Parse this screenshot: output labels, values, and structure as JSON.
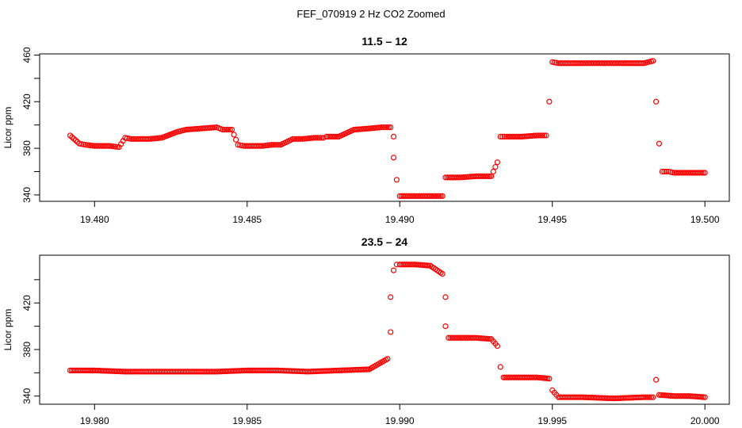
{
  "figure": {
    "title": "FEF_070919  2 Hz CO2 Zoomed"
  },
  "colors": {
    "points": "#ff0000",
    "axes": "#000000",
    "background": "#ffffff"
  },
  "chart_data": [
    {
      "type": "scatter",
      "title": "11.5 – 12",
      "xlabel": "",
      "ylabel": "Licor ppm",
      "xlim": [
        19.4782,
        19.5008
      ],
      "ylim": [
        334.5,
        461.0
      ],
      "x_ticks": [
        19.48,
        19.485,
        19.49,
        19.495,
        19.5
      ],
      "x_tick_labels": [
        "19.480",
        "19.485",
        "19.490",
        "19.495",
        "19.500"
      ],
      "y_ticks": [
        340,
        380,
        420,
        460
      ],
      "y_tick_labels": [
        "340",
        "380",
        "420",
        "460"
      ],
      "y_minor_ticks": [
        360,
        400,
        440
      ],
      "marker": "open-circle",
      "grid": false,
      "series": [
        {
          "x": [
            19.4792,
            19.4795,
            19.4797,
            19.48,
            19.4805,
            19.4808,
            19.481,
            19.4812,
            19.4818,
            19.4822,
            19.4827,
            19.483,
            19.4835,
            19.484,
            19.4842,
            19.4845,
            19.4847,
            19.4849,
            19.4855,
            19.4858,
            19.4861,
            19.4865,
            19.4868,
            19.4872,
            19.4875,
            19.4876,
            19.488,
            19.4885,
            19.489,
            19.4894,
            19.4897,
            19.4898,
            19.4898,
            19.4899,
            19.49,
            19.4905,
            19.491,
            19.4914,
            19.4915,
            19.492,
            19.4925,
            19.493,
            19.4932,
            19.4933,
            19.4935,
            19.494,
            19.4945,
            19.4948,
            19.4949,
            19.495,
            19.4952,
            19.496,
            19.497,
            19.498,
            19.4983,
            19.4984,
            19.4985,
            19.4986,
            19.4988,
            19.499,
            19.4995,
            19.5
          ],
          "y": [
            391,
            384,
            383,
            382,
            382,
            381,
            389,
            388,
            388,
            389,
            394,
            396,
            397,
            398,
            396,
            396,
            383,
            382,
            382,
            383,
            383,
            388,
            388,
            389,
            389,
            390,
            390,
            396,
            397,
            398,
            398,
            390,
            372,
            353,
            339,
            339,
            339,
            339,
            355,
            355,
            356,
            356,
            368,
            390,
            390,
            390,
            391,
            391,
            420,
            454,
            453,
            453,
            453,
            453,
            455,
            420,
            384,
            360,
            360,
            359,
            359,
            359
          ]
        }
      ]
    },
    {
      "type": "scatter",
      "title": "23.5 – 24",
      "xlabel": "",
      "ylabel": "Licor ppm",
      "xlim": [
        19.9782,
        20.0008
      ],
      "ylim": [
        333.0,
        461.0
      ],
      "x_ticks": [
        19.98,
        19.985,
        19.99,
        19.995,
        20.0
      ],
      "x_tick_labels": [
        "19.980",
        "19.985",
        "19.990",
        "19.995",
        "20.000"
      ],
      "y_ticks": [
        340,
        380,
        420
      ],
      "y_tick_labels": [
        "340",
        "380",
        "420"
      ],
      "y_minor_ticks": [
        360,
        400,
        440
      ],
      "marker": "open-circle",
      "grid": false,
      "series": [
        {
          "x": [
            19.9792,
            19.98,
            19.981,
            19.982,
            19.983,
            19.984,
            19.985,
            19.986,
            19.987,
            19.988,
            19.989,
            19.9896,
            19.9897,
            19.9897,
            19.9898,
            19.9899,
            19.99,
            19.9905,
            19.991,
            19.9914,
            19.9915,
            19.9915,
            19.9916,
            19.992,
            19.9925,
            19.993,
            19.9932,
            19.9933,
            19.9934,
            19.994,
            19.9945,
            19.9949,
            19.995,
            19.9952,
            19.996,
            19.997,
            19.998,
            19.9983,
            19.9984,
            19.9985,
            19.999,
            19.9995,
            20.0
          ],
          "y": [
            362,
            362,
            361,
            361,
            361,
            361,
            362,
            362,
            361,
            362,
            363,
            372,
            395,
            425,
            448,
            453,
            453,
            453,
            452,
            445,
            425,
            400,
            390,
            390,
            390,
            389,
            383,
            365,
            356,
            356,
            356,
            355,
            345,
            339,
            339,
            338,
            339,
            339,
            354,
            341,
            340,
            340,
            339
          ]
        }
      ]
    }
  ]
}
